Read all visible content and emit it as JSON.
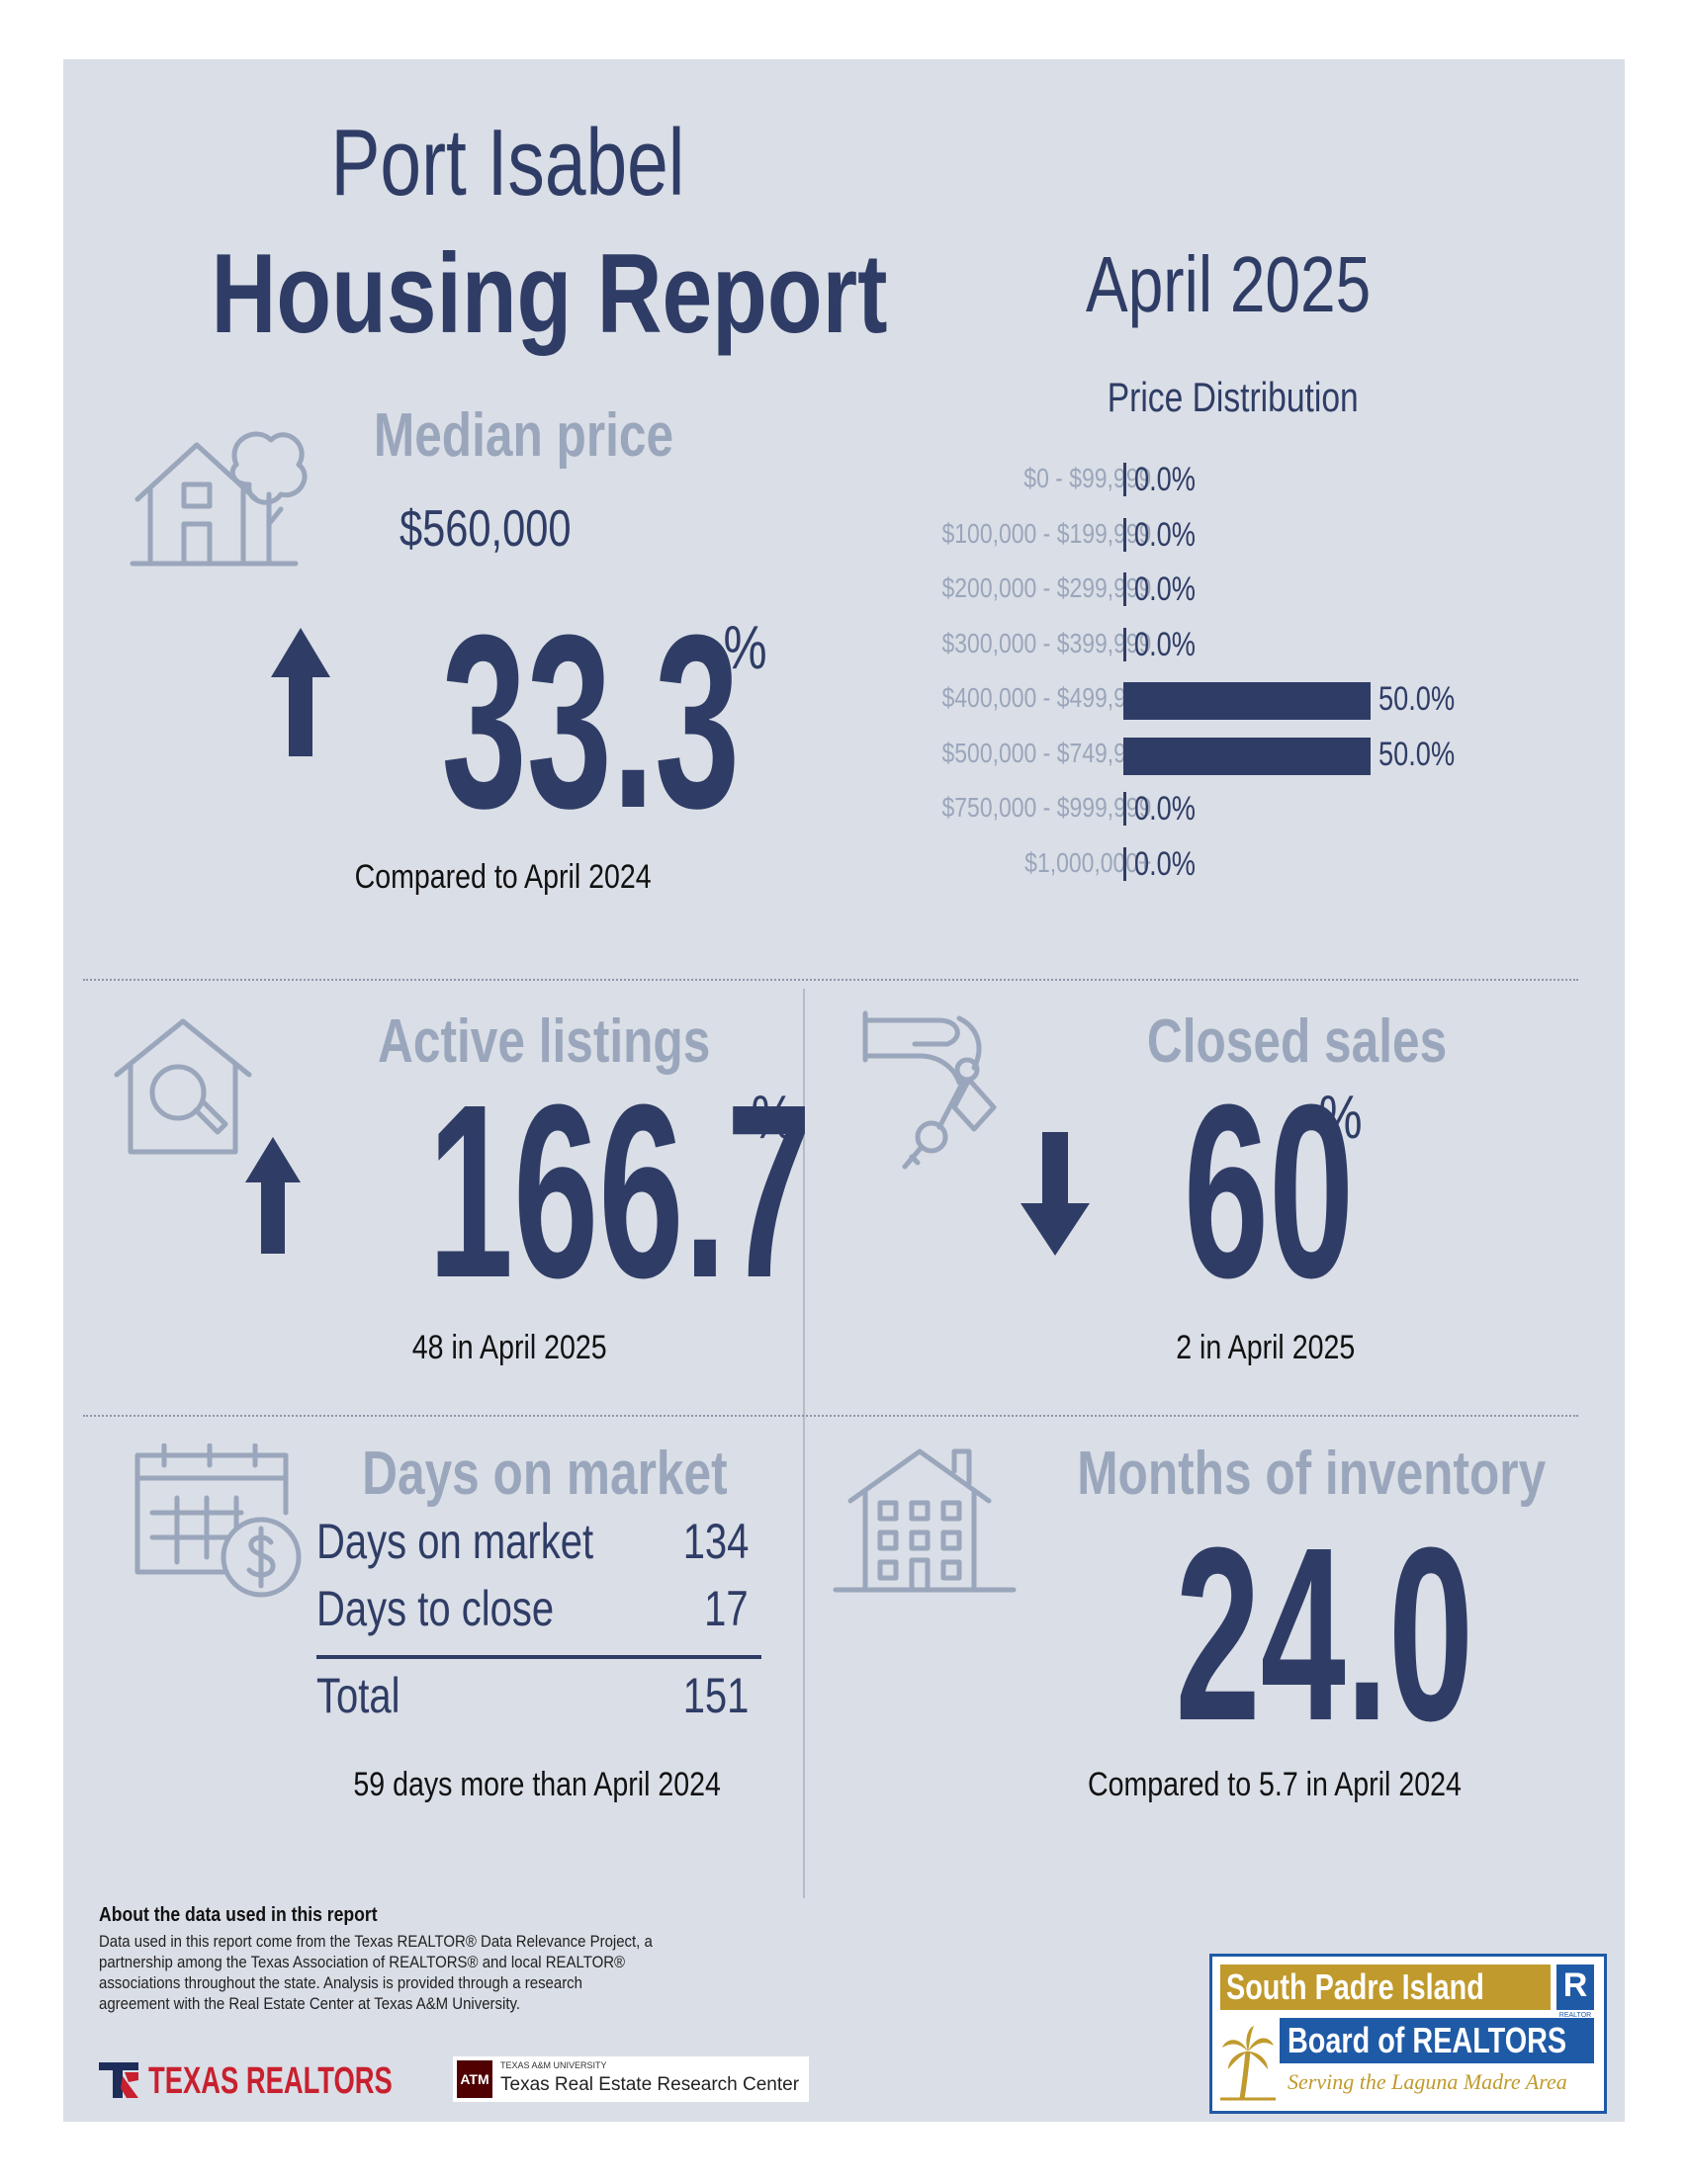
{
  "header": {
    "city": "Port Isabel",
    "report_title": "Housing Report",
    "month": "April 2025"
  },
  "median_price": {
    "label": "Median price",
    "value": "$560,000",
    "change": "33.3",
    "pct_sign": "%",
    "direction": "up",
    "caption": "Compared to April 2024"
  },
  "price_distribution": {
    "title": "Price Distribution",
    "rows": [
      {
        "range": "$0 - $99,999",
        "value_label": "0.0%",
        "percent": 0
      },
      {
        "range": "$100,000 - $199,999",
        "value_label": "0.0%",
        "percent": 0
      },
      {
        "range": "$200,000 - $299,999",
        "value_label": "0.0%",
        "percent": 0
      },
      {
        "range": "$300,000 - $399,999",
        "value_label": "0.0%",
        "percent": 0
      },
      {
        "range": "$400,000 - $499,999",
        "value_label": "50.0%",
        "percent": 50
      },
      {
        "range": "$500,000 - $749,999",
        "value_label": "50.0%",
        "percent": 50
      },
      {
        "range": "$750,000 - $999,999",
        "value_label": "0.0%",
        "percent": 0
      },
      {
        "range": "$1,000,000+",
        "value_label": "0.0%",
        "percent": 0
      }
    ]
  },
  "active_listings": {
    "label": "Active listings",
    "change": "166.7",
    "pct_sign": "%",
    "direction": "up",
    "caption": "48 in April 2025"
  },
  "closed_sales": {
    "label": "Closed sales",
    "change": "60",
    "pct_sign": "%",
    "direction": "down",
    "caption": "2 in April 2025"
  },
  "days_on_market": {
    "label": "Days on market",
    "rows": [
      {
        "label": "Days on market",
        "value": "134"
      },
      {
        "label": "Days to close",
        "value": "17"
      }
    ],
    "total_label": "Total",
    "total_value": "151",
    "caption": "59 days more than April 2024"
  },
  "months_inventory": {
    "label": "Months of inventory",
    "value": "24.0",
    "caption": "Compared to 5.7 in April 2024"
  },
  "about": {
    "heading": "About the data used in this report",
    "text": "Data used in this report come from the Texas REALTOR® Data Relevance Project, a partnership among the Texas Association of REALTORS® and local REALTOR® associations throughout the state. Analysis is provided through a research agreement with the Real Estate Center at Texas A&M University."
  },
  "logos": {
    "texas_realtors": "TEXAS REALTORS",
    "tamu_small": "TEXAS A&M UNIVERSITY",
    "tamu_center": "Texas Real Estate Research Center",
    "spi_line1": "South Padre Island",
    "spi_line2": "Board of REALTORS",
    "spi_tagline": "Serving the Laguna Madre Area",
    "realtor_mark": "R",
    "realtor_small": "REALTOR"
  },
  "colors": {
    "navy": "#2f3d66",
    "muted": "#9aa6bb",
    "panel": "#dadee6",
    "gold": "#c09a2c",
    "blue": "#1f5aa6"
  }
}
